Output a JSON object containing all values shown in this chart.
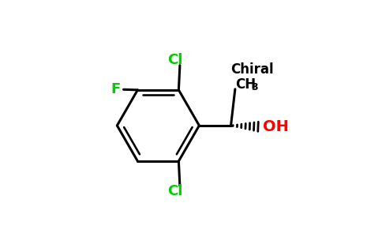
{
  "background_color": "#ffffff",
  "bond_color": "#000000",
  "cl_color": "#00cc00",
  "f_color": "#00cc00",
  "oh_color": "#ff0000",
  "chiral_color": "#000000",
  "line_width": 2.2,
  "chiral_label": "Chiral",
  "oh_label": "OH",
  "f_label": "F",
  "cl_top_label": "Cl",
  "cl_bottom_label": "Cl"
}
